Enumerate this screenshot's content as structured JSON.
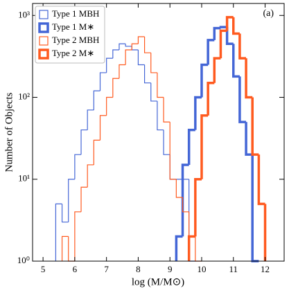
{
  "chart_data": {
    "type": "histogram",
    "xlabel": "log (M/M⊙)",
    "ylabel": "Number of Objects",
    "annotation": "(a)",
    "bins": [
      5.4,
      5.6,
      5.8,
      6.0,
      6.2,
      6.4,
      6.6,
      6.8,
      7.0,
      7.2,
      7.4,
      7.6,
      7.8,
      8.0,
      8.2,
      8.4,
      8.6,
      8.8,
      9.0,
      9.2,
      9.4,
      9.6,
      9.8,
      10.0,
      10.2,
      10.4,
      10.6,
      10.8,
      11.0,
      11.2,
      11.4,
      11.6,
      11.8,
      12.0
    ],
    "series": [
      {
        "name": "Type 1 MBH",
        "color": "#4466d6",
        "width": 1.2,
        "values": [
          5,
          3,
          10,
          20,
          40,
          70,
          120,
          200,
          300,
          380,
          450,
          420,
          380,
          250,
          150,
          90,
          40,
          20,
          10,
          10,
          10,
          0,
          0,
          0,
          0,
          0,
          0,
          0,
          0,
          0,
          0,
          0,
          0
        ]
      },
      {
        "name": "Type 1 M∗",
        "color": "#4466d6",
        "width": 3.5,
        "values": [
          0,
          0,
          0,
          0,
          0,
          0,
          0,
          0,
          0,
          0,
          0,
          0,
          0,
          0,
          0,
          0,
          0,
          0,
          0,
          2,
          15,
          40,
          100,
          250,
          500,
          700,
          720,
          450,
          180,
          50,
          20,
          0,
          0
        ]
      },
      {
        "name": "Type 2 MBH",
        "color": "#ff5a1f",
        "width": 1.2,
        "values": [
          0,
          2,
          1,
          4,
          8,
          15,
          30,
          60,
          100,
          170,
          250,
          380,
          450,
          550,
          350,
          200,
          100,
          50,
          10,
          6,
          4,
          2,
          0,
          0,
          0,
          0,
          0,
          0,
          0,
          0,
          0,
          0,
          0
        ]
      },
      {
        "name": "Type 2 M∗",
        "color": "#ff5a1f",
        "width": 3.5,
        "values": [
          0,
          0,
          0,
          0,
          0,
          0,
          0,
          0,
          0,
          0,
          0,
          0,
          0,
          0,
          0,
          0,
          0,
          0,
          0,
          0,
          0,
          2,
          10,
          60,
          150,
          300,
          650,
          950,
          600,
          300,
          100,
          20,
          5
        ]
      }
    ],
    "xlim": [
      4.67,
      12.6
    ],
    "ylim": [
      1,
      1400
    ],
    "log_y": true,
    "xticks": [
      5,
      6,
      7,
      8,
      9,
      10,
      11,
      12
    ],
    "yticks": [
      {
        "value": 1,
        "label": "10⁰"
      },
      {
        "value": 10,
        "label": "10¹"
      },
      {
        "value": 100,
        "label": "10²"
      },
      {
        "value": 1000,
        "label": "10³"
      }
    ],
    "legend": "upper left"
  }
}
